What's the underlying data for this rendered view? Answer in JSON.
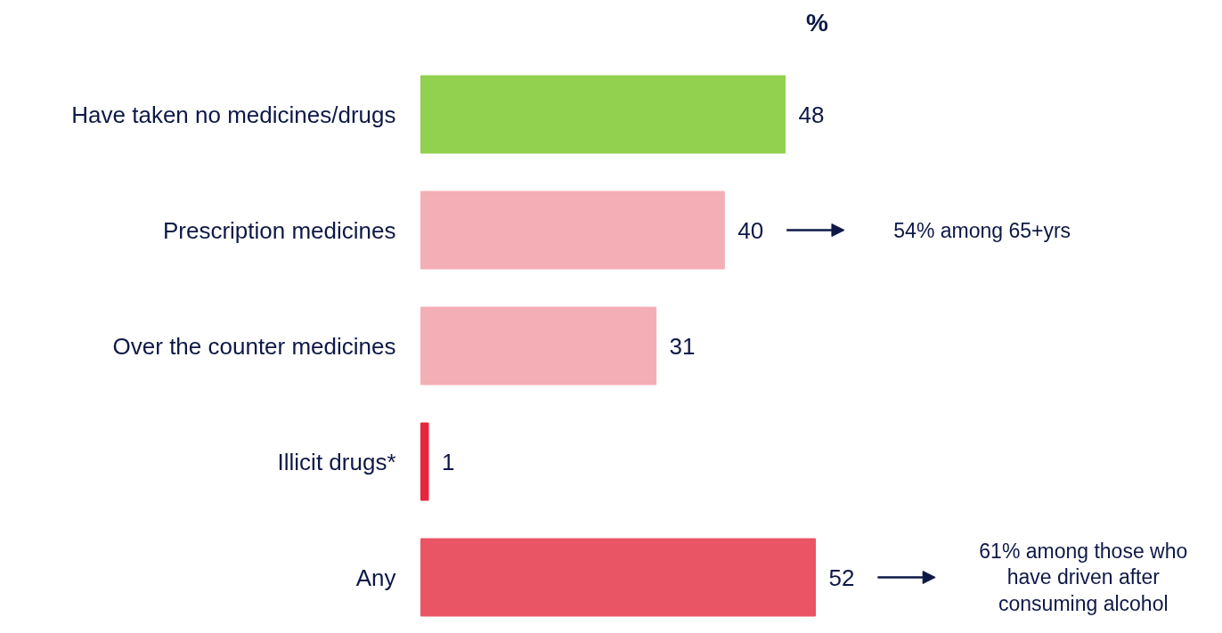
{
  "chart_data": {
    "type": "bar",
    "orientation": "horizontal",
    "title": "%",
    "categories": [
      "Have taken no medicines/drugs",
      "Prescription medicines",
      "Over the counter medicines",
      "Illicit drugs*",
      "Any"
    ],
    "values": [
      48,
      40,
      31,
      1,
      52
    ],
    "colors": [
      "#92d050",
      "#f4aeb5",
      "#f4aeb5",
      "#e5263d",
      "#ea5566"
    ],
    "data_labels": true,
    "annotations": [
      "54% among 65+yrs",
      "61% among those who\nhave driven after\nconsuming alcohol"
    ]
  }
}
